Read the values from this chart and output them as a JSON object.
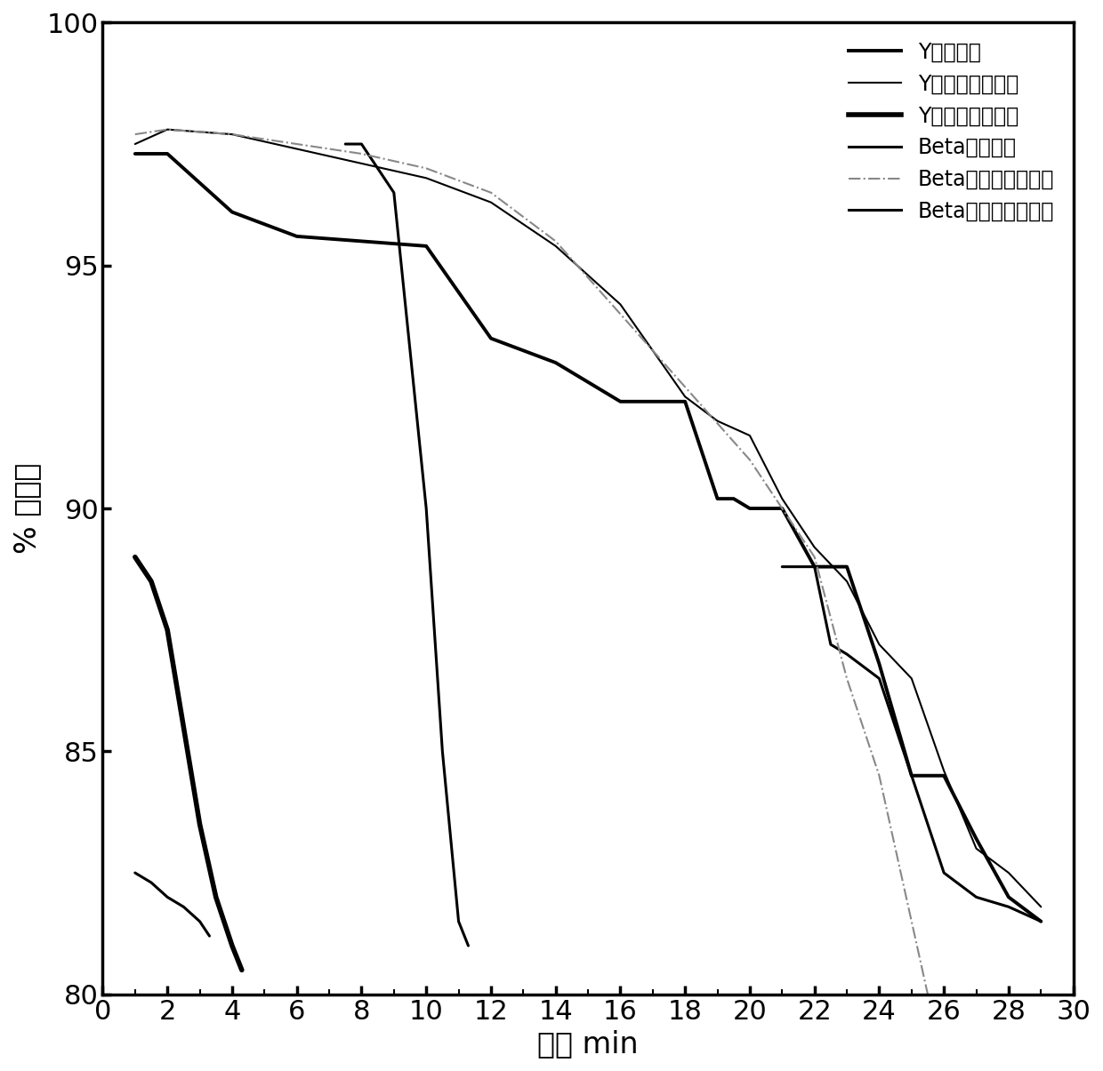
{
  "xlabel": "时间 min",
  "ylabel": "% 检测率",
  "xlim": [
    0,
    30
  ],
  "ylim": [
    80,
    100
  ],
  "xticks": [
    0,
    2,
    4,
    6,
    8,
    10,
    12,
    14,
    16,
    18,
    20,
    22,
    24,
    26,
    28,
    30
  ],
  "yticks": [
    80,
    85,
    90,
    95,
    100
  ],
  "background_color": "#ffffff",
  "series": [
    {
      "label": "Y正常测试",
      "color": "#000000",
      "linewidth": 2.8,
      "linestyle": "solid",
      "x": [
        1,
        2,
        4,
        6,
        8,
        10,
        12,
        14,
        16,
        18,
        19,
        19.5,
        20,
        21,
        22,
        23,
        24,
        25,
        26,
        27,
        28,
        29
      ],
      "y": [
        97.3,
        97.3,
        96.1,
        95.6,
        95.5,
        95.4,
        93.5,
        93.0,
        92.2,
        92.2,
        90.2,
        90.2,
        90.0,
        90.0,
        88.8,
        88.8,
        86.8,
        84.5,
        84.5,
        83.2,
        82.0,
        81.5
      ]
    },
    {
      "label": "Y吸附水汽后测试",
      "color": "#000000",
      "linewidth": 1.5,
      "linestyle": "solid",
      "x": [
        1,
        2,
        4,
        6,
        8,
        10,
        12,
        14,
        16,
        18,
        19,
        20,
        21,
        22,
        23,
        24,
        25,
        26,
        27,
        28,
        29
      ],
      "y": [
        97.5,
        97.8,
        97.7,
        97.4,
        97.1,
        96.8,
        96.3,
        95.4,
        94.2,
        92.3,
        91.8,
        91.5,
        90.2,
        89.2,
        88.5,
        87.2,
        86.5,
        84.6,
        83.0,
        82.5,
        81.8
      ]
    },
    {
      "label": "Y水汽吹扫后测试",
      "color": "#000000",
      "linewidth": 4.0,
      "linestyle": "solid",
      "x": [
        1,
        1.5,
        2,
        2.5,
        3,
        3.5,
        4,
        4.3
      ],
      "y": [
        89.0,
        88.5,
        87.5,
        85.5,
        83.5,
        82.0,
        81.0,
        80.5
      ]
    },
    {
      "label": "Beta正常测试",
      "color": "#000000",
      "linewidth": 2.2,
      "linestyle": "solid",
      "x": [
        7.5,
        8.0,
        9.0,
        10.0,
        10.5,
        11.0,
        11.3
      ],
      "y": [
        97.5,
        97.5,
        96.5,
        90.0,
        85.0,
        81.5,
        81.0
      ],
      "x2": [
        21.0,
        22.0,
        22.5,
        23.0,
        24.0,
        25.0,
        26.0,
        27.0,
        28.0,
        29.0
      ],
      "y2": [
        88.8,
        88.8,
        87.2,
        87.0,
        86.5,
        84.5,
        82.5,
        82.0,
        81.8,
        81.5
      ]
    },
    {
      "label": "Beta吸附水汽后测试",
      "color": "#888888",
      "linewidth": 1.5,
      "linestyle": "dashdot",
      "x": [
        1,
        2,
        4,
        6,
        8,
        10,
        12,
        14,
        16,
        18,
        20,
        22,
        23,
        24,
        25,
        25.5
      ],
      "y": [
        97.7,
        97.8,
        97.7,
        97.5,
        97.3,
        97.0,
        96.5,
        95.5,
        94.0,
        92.5,
        91.0,
        89.0,
        86.5,
        84.5,
        81.5,
        80.0
      ]
    },
    {
      "label": "Beta水汽吹扫后测试",
      "color": "#000000",
      "linewidth": 2.2,
      "linestyle": "solid",
      "x": [
        1,
        1.5,
        2,
        2.5,
        3,
        3.3
      ],
      "y": [
        82.5,
        82.3,
        82.0,
        81.8,
        81.5,
        81.2
      ]
    }
  ],
  "legend_labels": [
    "Y正常测试",
    "Y吸附水汽后测试",
    "Y水汽吹扫后测试",
    "Beta正常测试",
    "Beta吸附水汽后测试",
    "Beta水汽吹扫后测试"
  ],
  "legend_linewidths": [
    2.8,
    1.5,
    4.0,
    2.2,
    1.5,
    2.2
  ],
  "legend_linestyles": [
    "solid",
    "solid",
    "solid",
    "solid",
    "dashdot",
    "solid"
  ],
  "legend_colors": [
    "#000000",
    "#000000",
    "#000000",
    "#000000",
    "#888888",
    "#000000"
  ]
}
